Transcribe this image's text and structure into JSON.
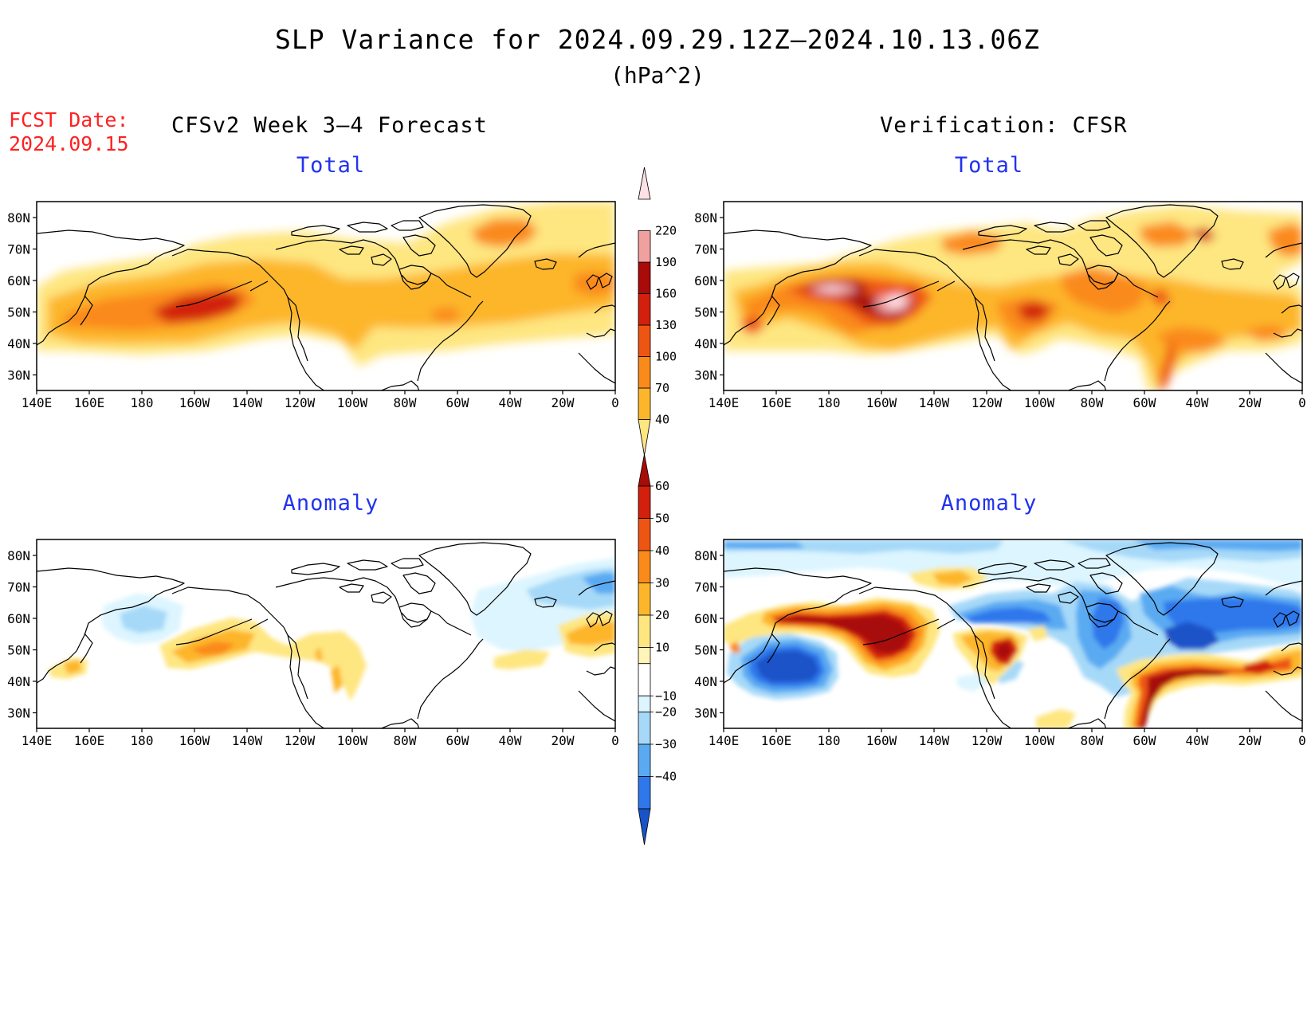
{
  "title": "SLP Variance for 2024.09.29.12Z–2024.10.13.06Z",
  "units": "(hPa^2)",
  "fcst_date_label": "FCST Date:",
  "fcst_date": "2024.09.15",
  "left_header": "CFSv2 Week 3–4 Forecast",
  "right_header": "Verification: CFSR",
  "panels": [
    {
      "title": "Total",
      "field": "forecast_total"
    },
    {
      "title": "Total",
      "field": "verification_total"
    },
    {
      "title": "Anomaly",
      "field": "forecast_anomaly"
    },
    {
      "title": "Anomaly",
      "field": "verification_anomaly"
    }
  ],
  "x_ticks": [
    "140E",
    "160E",
    "180",
    "160W",
    "140W",
    "120W",
    "100W",
    "80W",
    "60W",
    "40W",
    "20W",
    "0"
  ],
  "y_ticks": [
    "80N",
    "70N",
    "60N",
    "50N",
    "40N",
    "30N"
  ],
  "total_colorbar": {
    "labels": [
      "40",
      "70",
      "100",
      "130",
      "160",
      "190",
      "220"
    ],
    "colors": [
      "#fee680",
      "#fdb62c",
      "#fa8a1a",
      "#ee5512",
      "#d2200c",
      "#a80b08",
      "#f1a0a0",
      "#fde0e6"
    ]
  },
  "anomaly_colorbar": {
    "labels": [
      "60",
      "50",
      "40",
      "30",
      "20",
      "10",
      "−10",
      "−20",
      "−30",
      "−40"
    ],
    "colors": [
      "#a80b08",
      "#d2200c",
      "#ee5512",
      "#fa8a1a",
      "#fdb62c",
      "#fee680",
      "#fff5b8",
      "#ffffff",
      "#dcf5ff",
      "#a6d9f8",
      "#5aaaf2",
      "#2f78ec",
      "#1a53c8"
    ]
  }
}
